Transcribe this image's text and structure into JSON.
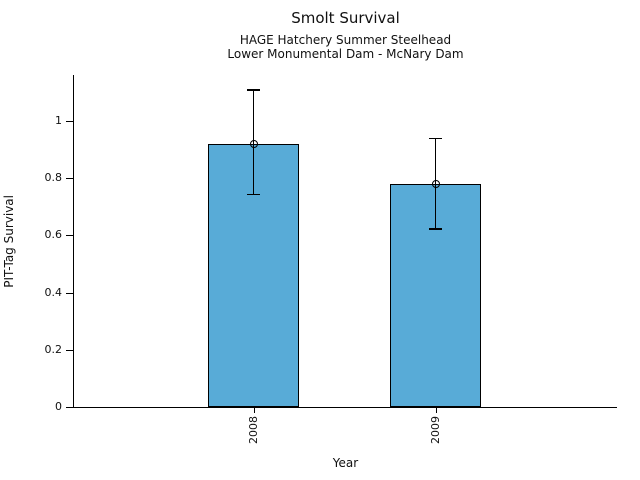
{
  "figure": {
    "title": "Smolt Survival",
    "subtitle_line1": "HAGE Hatchery Summer Steelhead",
    "subtitle_line2": "Lower Monumental Dam - McNary Dam"
  },
  "chart_data": {
    "type": "bar",
    "title": "Smolt Survival",
    "subtitle1": "HAGE Hatchery Summer Steelhead",
    "subtitle2": "Lower Monumental Dam - McNary Dam",
    "xlabel": "Year",
    "ylabel": "PIT-Tag Survival",
    "categories": [
      "2008",
      "2009"
    ],
    "values": [
      0.92,
      0.78
    ],
    "error_bars": {
      "low": [
        0.74,
        0.62
      ],
      "high": [
        1.11,
        0.94
      ]
    },
    "y_ticks": [
      0,
      0.2,
      0.4,
      0.6,
      0.8,
      1
    ],
    "ylim": [
      0,
      1.16
    ],
    "grid": false,
    "legend": "none",
    "marker": "open-circle-at-bar-top",
    "colors": {
      "bar_fill": "#58ABD7",
      "bar_edge": "#000000",
      "error_bar": "#000000",
      "text": "#111111"
    }
  }
}
